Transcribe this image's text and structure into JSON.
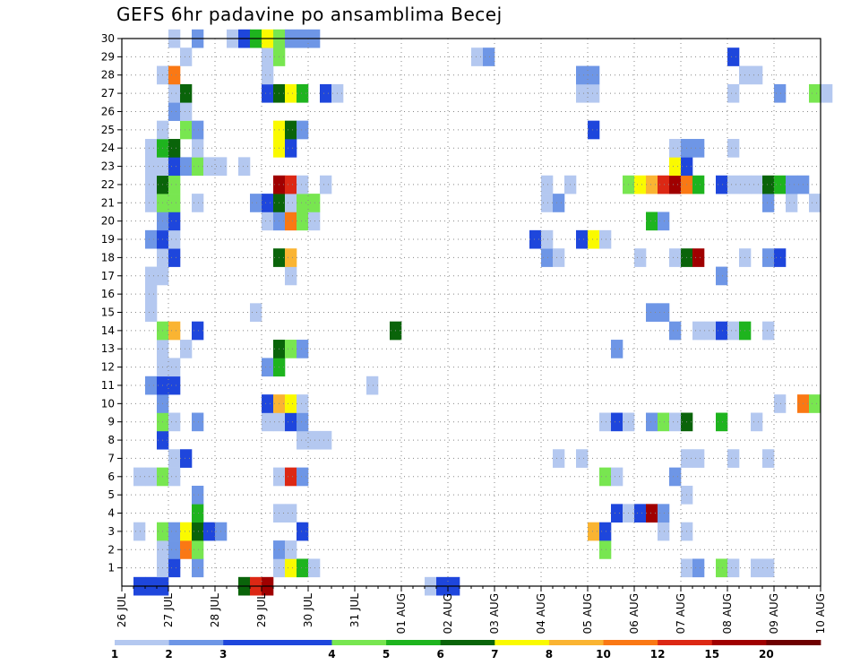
{
  "chart_data": {
    "type": "heatmap",
    "title": "GEFS 6hr padavine po ansamblima Becej",
    "x_tick_labels": [
      "26 JUL",
      "27 JUL",
      "28 JUL",
      "29 JUL",
      "30 JUL",
      "31 JUL",
      "01 AUG",
      "02 AUG",
      "03 AUG",
      "04 AUG",
      "05 AUG",
      "06 AUG",
      "07 AUG",
      "08 AUG",
      "09 AUG",
      "10 AUG"
    ],
    "y_tick_labels": [
      "1",
      "2",
      "3",
      "4",
      "5",
      "6",
      "7",
      "8",
      "9",
      "10",
      "11",
      "12",
      "13",
      "14",
      "15",
      "16",
      "17",
      "18",
      "19",
      "20",
      "21",
      "22",
      "23",
      "24",
      "25",
      "26",
      "27",
      "28",
      "29",
      "30"
    ],
    "y_range": [
      0,
      30
    ],
    "grid": true,
    "colorbar": {
      "labels": [
        "1",
        "2",
        "3",
        "4",
        "5",
        "6",
        "7",
        "8",
        "10",
        "12",
        "15",
        "20"
      ],
      "colors": [
        "#b4c8f0",
        "#6e96e6",
        "#1e46dc",
        "#1e46dc",
        "#78e650",
        "#1eb41e",
        "#0a640a",
        "#fafa00",
        "#fab432",
        "#fa7814",
        "#dc2814",
        "#a00000",
        "#6e0000"
      ]
    },
    "rows": [
      {
        "member": 0,
        "cells": [
          [
            3,
            3
          ],
          [
            2,
            3
          ],
          [
            1,
            3
          ],
          [
            10,
            7
          ],
          [
            11,
            11
          ],
          [
            12,
            12
          ],
          [
            26,
            1
          ],
          [
            27,
            3
          ],
          [
            28,
            3
          ]
        ]
      },
      {
        "member": 1,
        "cells": [
          [
            3,
            1
          ],
          [
            4,
            3
          ],
          [
            6,
            2
          ],
          [
            13,
            1
          ],
          [
            14,
            8
          ],
          [
            15,
            6
          ],
          [
            16,
            1
          ],
          [
            48,
            1
          ],
          [
            49,
            2
          ],
          [
            51,
            5
          ],
          [
            52,
            1
          ],
          [
            54,
            1
          ],
          [
            55,
            1
          ],
          [
            66,
            3
          ]
        ]
      },
      {
        "member": 2,
        "cells": [
          [
            3,
            1
          ],
          [
            4,
            2
          ],
          [
            5,
            10
          ],
          [
            6,
            5
          ],
          [
            13,
            2
          ],
          [
            14,
            1
          ],
          [
            41,
            5
          ]
        ]
      },
      {
        "member": 3,
        "cells": [
          [
            1,
            1
          ],
          [
            3,
            5
          ],
          [
            4,
            2
          ],
          [
            5,
            8
          ],
          [
            6,
            7
          ],
          [
            7,
            3
          ],
          [
            8,
            2
          ],
          [
            15,
            3
          ],
          [
            40,
            9
          ],
          [
            41,
            3
          ],
          [
            46,
            1
          ],
          [
            48,
            1
          ]
        ]
      },
      {
        "member": 4,
        "cells": [
          [
            6,
            6
          ],
          [
            13,
            1
          ],
          [
            14,
            1
          ],
          [
            42,
            3
          ],
          [
            43,
            1
          ],
          [
            44,
            3
          ],
          [
            45,
            12
          ],
          [
            46,
            2
          ]
        ]
      },
      {
        "member": 5,
        "cells": [
          [
            6,
            2
          ],
          [
            48,
            1
          ]
        ]
      },
      {
        "member": 6,
        "cells": [
          [
            1,
            1
          ],
          [
            2,
            1
          ],
          [
            3,
            5
          ],
          [
            4,
            1
          ],
          [
            13,
            1
          ],
          [
            14,
            11
          ],
          [
            15,
            2
          ],
          [
            41,
            5
          ],
          [
            42,
            1
          ],
          [
            47,
            2
          ]
        ]
      },
      {
        "member": 7,
        "cells": [
          [
            4,
            1
          ],
          [
            5,
            3
          ],
          [
            37,
            1
          ],
          [
            39,
            1
          ],
          [
            48,
            1
          ],
          [
            49,
            1
          ],
          [
            52,
            1
          ],
          [
            55,
            1
          ]
        ]
      },
      {
        "member": 8,
        "cells": [
          [
            3,
            3
          ],
          [
            15,
            1
          ],
          [
            16,
            1
          ],
          [
            17,
            1
          ]
        ]
      },
      {
        "member": 9,
        "cells": [
          [
            3,
            5
          ],
          [
            4,
            1
          ],
          [
            6,
            2
          ],
          [
            12,
            1
          ],
          [
            13,
            1
          ],
          [
            14,
            3
          ],
          [
            15,
            2
          ],
          [
            41,
            1
          ],
          [
            42,
            3
          ],
          [
            43,
            1
          ],
          [
            45,
            2
          ],
          [
            46,
            5
          ],
          [
            47,
            1
          ],
          [
            48,
            7
          ],
          [
            51,
            6
          ],
          [
            54,
            1
          ]
        ]
      },
      {
        "member": 10,
        "cells": [
          [
            3,
            2
          ],
          [
            12,
            3
          ],
          [
            13,
            9
          ],
          [
            14,
            8
          ],
          [
            15,
            1
          ],
          [
            56,
            1
          ],
          [
            58,
            10
          ],
          [
            59,
            5
          ]
        ]
      },
      {
        "member": 11,
        "cells": [
          [
            2,
            2
          ],
          [
            3,
            3
          ],
          [
            4,
            3
          ],
          [
            21,
            1
          ]
        ]
      },
      {
        "member": 12,
        "cells": [
          [
            3,
            1
          ],
          [
            4,
            1
          ],
          [
            12,
            2
          ],
          [
            13,
            6
          ]
        ]
      },
      {
        "member": 13,
        "cells": [
          [
            3,
            1
          ],
          [
            5,
            1
          ],
          [
            13,
            7
          ],
          [
            14,
            5
          ],
          [
            15,
            2
          ],
          [
            42,
            2
          ]
        ]
      },
      {
        "member": 14,
        "cells": [
          [
            3,
            5
          ],
          [
            4,
            9
          ],
          [
            6,
            3
          ],
          [
            23,
            7
          ],
          [
            47,
            2
          ],
          [
            49,
            1
          ],
          [
            50,
            1
          ],
          [
            51,
            3
          ],
          [
            52,
            1
          ],
          [
            53,
            6
          ],
          [
            55,
            1
          ]
        ]
      },
      {
        "member": 15,
        "cells": [
          [
            2,
            1
          ],
          [
            11,
            1
          ],
          [
            45,
            2
          ],
          [
            46,
            2
          ]
        ]
      },
      {
        "member": 16,
        "cells": [
          [
            2,
            1
          ]
        ]
      },
      {
        "member": 17,
        "cells": [
          [
            2,
            1
          ],
          [
            3,
            1
          ],
          [
            14,
            1
          ],
          [
            51,
            2
          ]
        ]
      },
      {
        "member": 18,
        "cells": [
          [
            3,
            1
          ],
          [
            4,
            3
          ],
          [
            13,
            7
          ],
          [
            14,
            9
          ],
          [
            36,
            2
          ],
          [
            37,
            1
          ],
          [
            44,
            1
          ],
          [
            47,
            1
          ],
          [
            48,
            7
          ],
          [
            49,
            12
          ],
          [
            53,
            1
          ],
          [
            55,
            2
          ],
          [
            56,
            3
          ]
        ]
      },
      {
        "member": 19,
        "cells": [
          [
            2,
            2
          ],
          [
            3,
            3
          ],
          [
            4,
            1
          ],
          [
            35,
            3
          ],
          [
            36,
            1
          ],
          [
            39,
            3
          ],
          [
            40,
            8
          ],
          [
            41,
            1
          ]
        ]
      },
      {
        "member": 20,
        "cells": [
          [
            3,
            2
          ],
          [
            4,
            3
          ],
          [
            12,
            1
          ],
          [
            13,
            2
          ],
          [
            14,
            10
          ],
          [
            15,
            5
          ],
          [
            16,
            1
          ],
          [
            45,
            6
          ],
          [
            46,
            2
          ]
        ]
      },
      {
        "member": 21,
        "cells": [
          [
            2,
            1
          ],
          [
            3,
            5
          ],
          [
            4,
            5
          ],
          [
            6,
            1
          ],
          [
            11,
            2
          ],
          [
            12,
            3
          ],
          [
            13,
            7
          ],
          [
            14,
            1
          ],
          [
            15,
            5
          ],
          [
            16,
            5
          ],
          [
            36,
            1
          ],
          [
            37,
            2
          ],
          [
            55,
            2
          ],
          [
            57,
            1
          ],
          [
            59,
            1
          ]
        ]
      },
      {
        "member": 22,
        "cells": [
          [
            2,
            1
          ],
          [
            3,
            7
          ],
          [
            4,
            5
          ],
          [
            13,
            12
          ],
          [
            14,
            11
          ],
          [
            15,
            1
          ],
          [
            17,
            1
          ],
          [
            36,
            1
          ],
          [
            38,
            1
          ],
          [
            43,
            5
          ],
          [
            44,
            8
          ],
          [
            45,
            9
          ],
          [
            46,
            11
          ],
          [
            47,
            12
          ],
          [
            48,
            10
          ],
          [
            49,
            6
          ],
          [
            51,
            3
          ],
          [
            52,
            1
          ],
          [
            53,
            1
          ],
          [
            54,
            1
          ],
          [
            55,
            7
          ],
          [
            56,
            6
          ],
          [
            57,
            2
          ],
          [
            58,
            2
          ]
        ]
      },
      {
        "member": 23,
        "cells": [
          [
            2,
            1
          ],
          [
            3,
            1
          ],
          [
            4,
            3
          ],
          [
            5,
            2
          ],
          [
            6,
            5
          ],
          [
            7,
            1
          ],
          [
            8,
            1
          ],
          [
            10,
            1
          ],
          [
            47,
            8
          ],
          [
            48,
            3
          ]
        ]
      },
      {
        "member": 24,
        "cells": [
          [
            2,
            1
          ],
          [
            3,
            6
          ],
          [
            4,
            7
          ],
          [
            6,
            1
          ],
          [
            13,
            8
          ],
          [
            14,
            3
          ],
          [
            47,
            1
          ],
          [
            48,
            2
          ],
          [
            49,
            2
          ],
          [
            52,
            1
          ]
        ]
      },
      {
        "member": 25,
        "cells": [
          [
            3,
            1
          ],
          [
            5,
            5
          ],
          [
            6,
            2
          ],
          [
            13,
            8
          ],
          [
            14,
            7
          ],
          [
            15,
            2
          ],
          [
            40,
            3
          ]
        ]
      },
      {
        "member": 26,
        "cells": [
          [
            4,
            2
          ],
          [
            5,
            1
          ]
        ]
      },
      {
        "member": 27,
        "cells": [
          [
            4,
            1
          ],
          [
            5,
            7
          ],
          [
            12,
            3
          ],
          [
            13,
            7
          ],
          [
            14,
            8
          ],
          [
            15,
            6
          ],
          [
            17,
            3
          ],
          [
            18,
            1
          ],
          [
            39,
            1
          ],
          [
            40,
            1
          ],
          [
            52,
            1
          ],
          [
            56,
            2
          ],
          [
            59,
            5
          ],
          [
            60,
            1
          ]
        ]
      },
      {
        "member": 28,
        "cells": [
          [
            3,
            1
          ],
          [
            4,
            10
          ],
          [
            12,
            1
          ],
          [
            39,
            2
          ],
          [
            40,
            2
          ],
          [
            53,
            1
          ],
          [
            54,
            1
          ]
        ]
      },
      {
        "member": 29,
        "cells": [
          [
            5,
            1
          ],
          [
            12,
            1
          ],
          [
            13,
            5
          ],
          [
            30,
            1
          ],
          [
            31,
            2
          ],
          [
            52,
            3
          ]
        ]
      },
      {
        "member": 30,
        "cells": [
          [
            4,
            1
          ],
          [
            6,
            2
          ],
          [
            9,
            1
          ],
          [
            10,
            3
          ],
          [
            11,
            6
          ],
          [
            12,
            8
          ],
          [
            13,
            5
          ],
          [
            14,
            2
          ],
          [
            15,
            2
          ],
          [
            16,
            2
          ]
        ]
      }
    ]
  }
}
